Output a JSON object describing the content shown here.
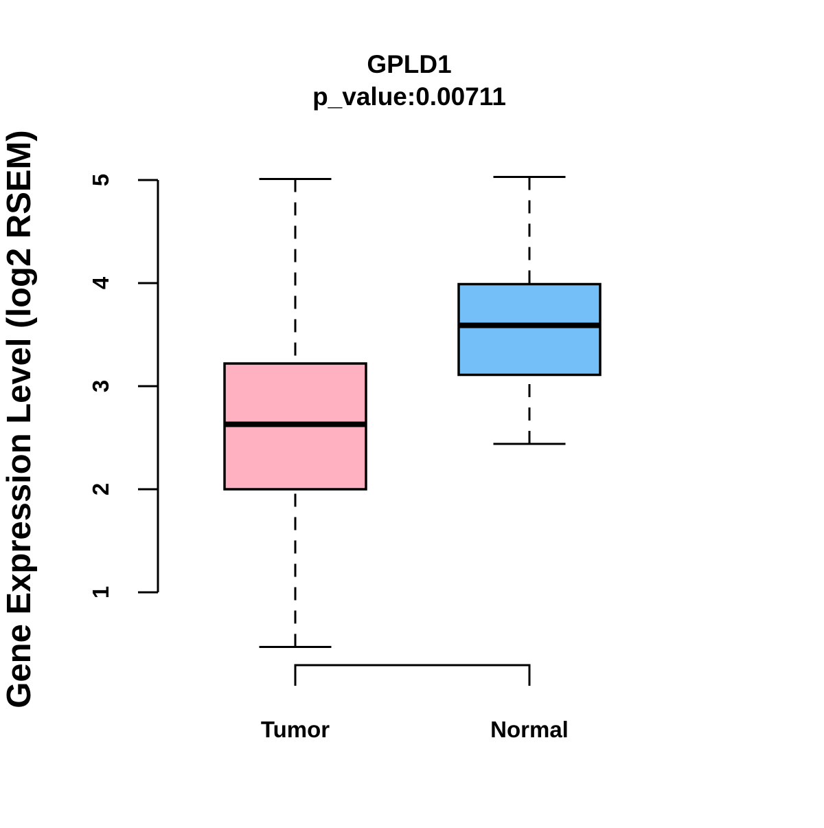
{
  "chart_data": {
    "type": "boxplot",
    "title": "GPLD1",
    "subtitle": "p_value:0.00711",
    "gene": "GPLD1",
    "p_value": "0.00711",
    "ylabel": "Gene Expression Level (log2 RSEM)",
    "xlabel": "",
    "categories": [
      "Tumor",
      "Normal"
    ],
    "y_ticks": [
      1,
      2,
      3,
      4,
      5
    ],
    "y_axis_range": [
      1,
      5
    ],
    "grid": "off",
    "legend": "none",
    "series": [
      {
        "name": "Tumor",
        "box_color": "#FFB0C1",
        "whisker_low": 0.47,
        "q1": 2.0,
        "median": 2.63,
        "q3": 3.22,
        "whisker_high": 5.01
      },
      {
        "name": "Normal",
        "box_color": "#74BFF7",
        "whisker_low": 2.44,
        "q1": 3.11,
        "median": 3.59,
        "q3": 3.99,
        "whisker_high": 5.03
      }
    ],
    "colors": {
      "box_border": "#000000",
      "median_line": "#000000",
      "whisker": "#000000",
      "axis": "#000000",
      "text": "#000000",
      "background": "#FFFFFF"
    }
  }
}
